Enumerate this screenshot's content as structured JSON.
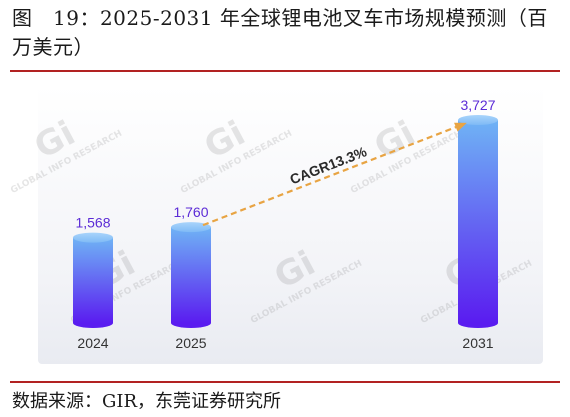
{
  "caption": {
    "prefix": "图　19：",
    "title": "2025-2031 年全球锂电池叉车市场规模预测（百万美元）"
  },
  "source": "数据来源：GIR，东莞证券研究所",
  "watermark": {
    "logo": "Gi",
    "text": "GLOBAL INFO RESEARCH"
  },
  "chart_data": {
    "type": "bar",
    "title": "2025-2031 年全球锂电池叉车市场规模预测（百万美元）",
    "categories": [
      "2024",
      "2025",
      "2031"
    ],
    "values": [
      1568,
      1760,
      3727
    ],
    "value_labels": [
      "1,568",
      "1,760",
      "3,727"
    ],
    "annotation": {
      "text": "CAGR13.3%",
      "from": "2025",
      "to": "2031"
    },
    "ylim": [
      0,
      3727
    ],
    "bar_colors": {
      "top": "#6fb3f5",
      "bottom": "#5a1cf0"
    },
    "label_color": "#5b2bd6",
    "annotation_color": "#e8a443"
  }
}
